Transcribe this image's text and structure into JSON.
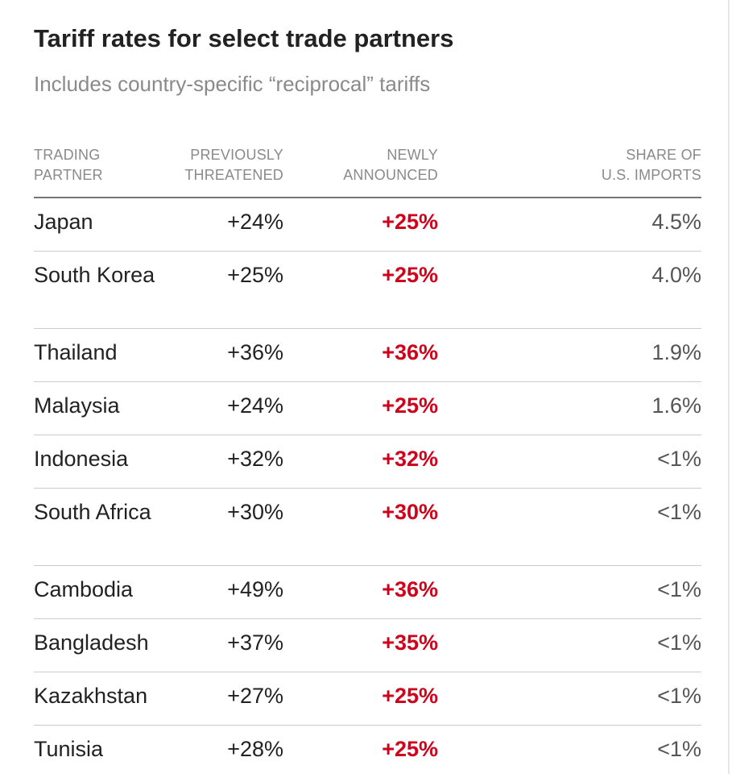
{
  "title": "Tariff rates for select trade partners",
  "subtitle": "Includes country-specific “reciprocal” tariffs",
  "headers": {
    "partner": "TRADING\nPARTNER",
    "previous": "PREVIOUSLY\nTHREATENED",
    "new": "NEWLY\nANNOUNCED",
    "share": "SHARE OF\nU.S. IMPORTS"
  },
  "colors": {
    "accent": "#d0021b",
    "text": "#222222",
    "muted": "#8a8a8a"
  },
  "chart_data": {
    "type": "table",
    "title": "Tariff rates for select trade partners",
    "subtitle": "Includes country-specific “reciprocal” tariffs",
    "columns": [
      "TRADING PARTNER",
      "PREVIOUSLY THREATENED",
      "NEWLY ANNOUNCED",
      "SHARE OF U.S. IMPORTS"
    ],
    "rows": [
      {
        "partner": "Japan",
        "previous": "+24%",
        "new": "+25%",
        "share": "4.5%"
      },
      {
        "partner": "South Korea",
        "previous": "+25%",
        "new": "+25%",
        "share": "4.0%"
      },
      {
        "partner": "Thailand",
        "previous": "+36%",
        "new": "+36%",
        "share": "1.9%"
      },
      {
        "partner": "Malaysia",
        "previous": "+24%",
        "new": "+25%",
        "share": "1.6%"
      },
      {
        "partner": "Indonesia",
        "previous": "+32%",
        "new": "+32%",
        "share": "<1%"
      },
      {
        "partner": "South Africa",
        "previous": "+30%",
        "new": "+30%",
        "share": "<1%"
      },
      {
        "partner": "Cambodia",
        "previous": "+49%",
        "new": "+36%",
        "share": "<1%"
      },
      {
        "partner": "Bangladesh",
        "previous": "+37%",
        "new": "+35%",
        "share": "<1%"
      },
      {
        "partner": "Kazakhstan",
        "previous": "+27%",
        "new": "+25%",
        "share": "<1%"
      },
      {
        "partner": "Tunisia",
        "previous": "+28%",
        "new": "+25%",
        "share": "<1%"
      }
    ]
  }
}
